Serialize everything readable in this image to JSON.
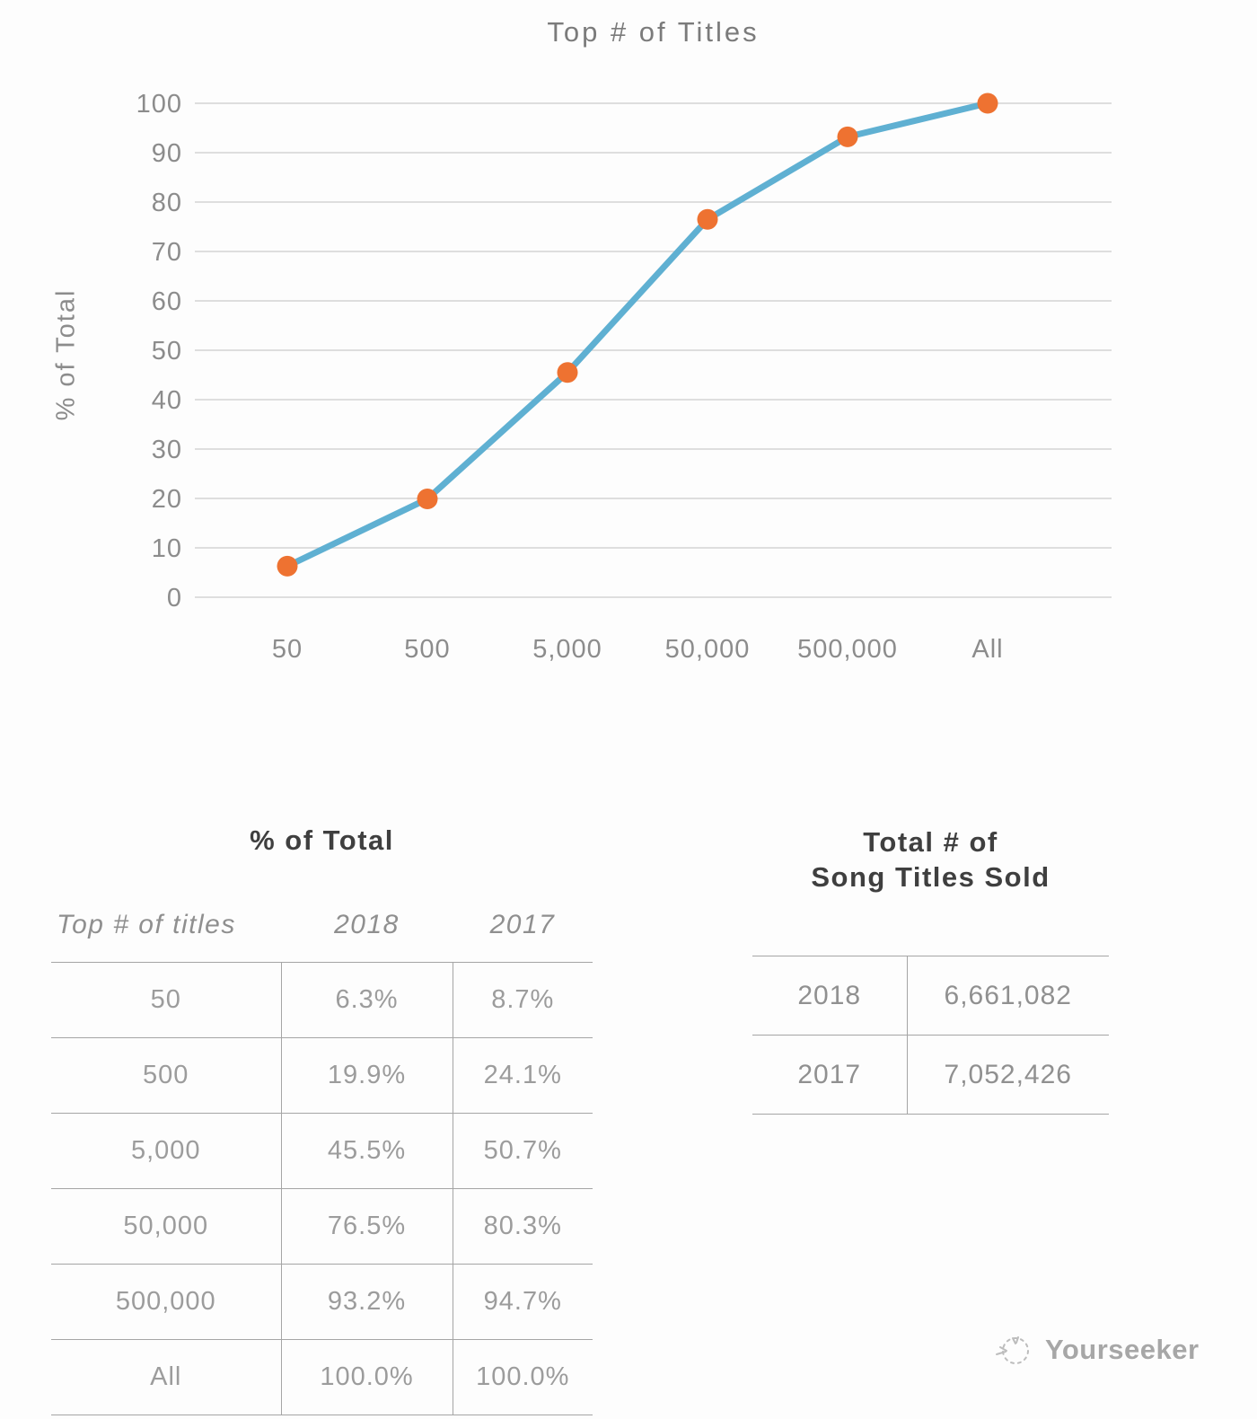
{
  "chart_data": {
    "type": "line",
    "title": "Top # of Titles",
    "xlabel": "Top # of titles",
    "ylabel": "% of Total",
    "categories": [
      "50",
      "500",
      "5,000",
      "50,000",
      "500,000",
      "All"
    ],
    "series": [
      {
        "name": "2018",
        "values": [
          6.3,
          19.9,
          45.5,
          76.5,
          93.2,
          100.0
        ]
      },
      {
        "name": "2017",
        "values": [
          8.7,
          24.1,
          50.7,
          80.3,
          94.7,
          100.0
        ]
      }
    ],
    "plotted_series": "2018",
    "ylim": [
      0,
      100
    ],
    "yticks": [
      0,
      10,
      20,
      30,
      40,
      50,
      60,
      70,
      80,
      90,
      100
    ],
    "grid": true,
    "legend": "none",
    "line_color": "#5fb0d2",
    "marker_color": "#ee7231",
    "grid_color": "#d4d4d4",
    "tick_color": "#8c8c8c"
  },
  "tables": {
    "pct_of_total": {
      "title": "% of Total",
      "columns": [
        "Top # of titles",
        "2018",
        "2017"
      ],
      "rows": [
        [
          "50",
          "6.3%",
          "8.7%"
        ],
        [
          "500",
          "19.9%",
          "24.1%"
        ],
        [
          "5,000",
          "45.5%",
          "50.7%"
        ],
        [
          "50,000",
          "76.5%",
          "80.3%"
        ],
        [
          "500,000",
          "93.2%",
          "94.7%"
        ],
        [
          "All",
          "100.0%",
          "100.0%"
        ]
      ]
    },
    "titles_sold": {
      "title_line1": "Total # of",
      "title_line2": "Song Titles Sold",
      "rows": [
        [
          "2018",
          "6,661,082"
        ],
        [
          "2017",
          "7,052,426"
        ]
      ]
    }
  },
  "watermark": {
    "label": "Yourseeker",
    "icon": "sketch-bird-icon"
  }
}
